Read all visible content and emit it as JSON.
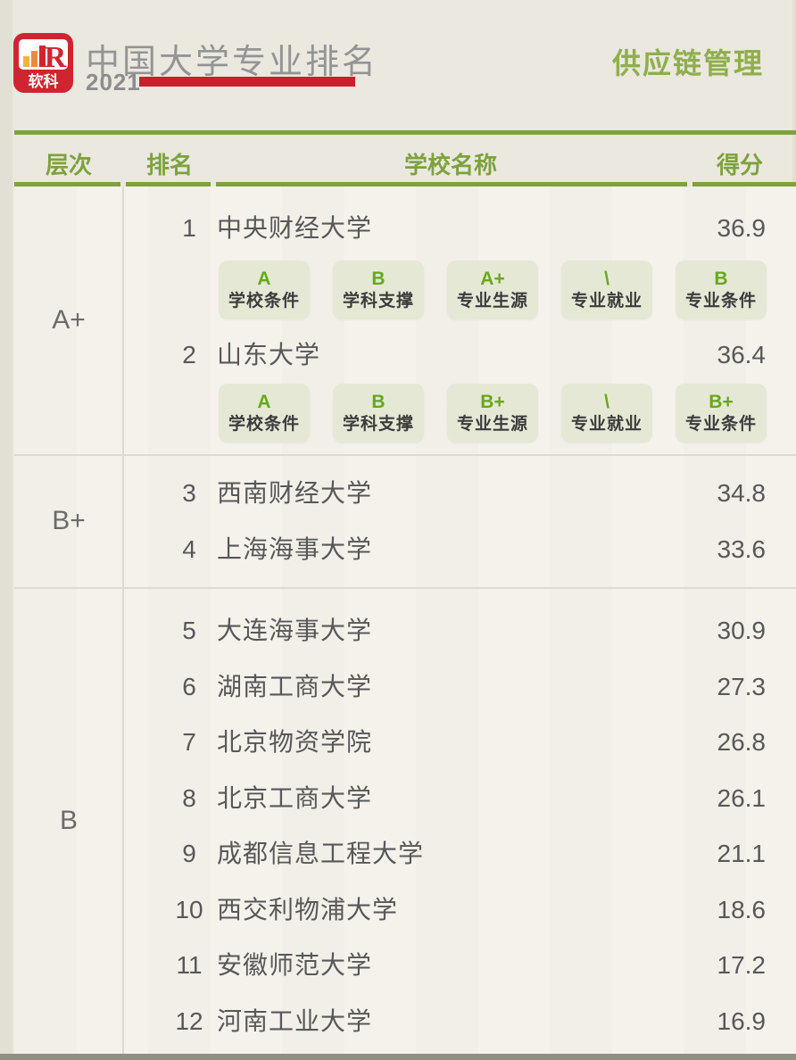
{
  "header": {
    "brand": "软科",
    "title": "中国大学专业排名",
    "year": "2021",
    "subject": "供应链管理"
  },
  "columns": {
    "tier": "层次",
    "rank": "排名",
    "school": "学校名称",
    "score": "得分"
  },
  "table": {
    "sections": [
      {
        "tier": "A+",
        "rows": [
          {
            "rank": "1",
            "school": "中央财经大学",
            "score": "36.9",
            "badges": [
              {
                "grade": "A",
                "label": "学校条件"
              },
              {
                "grade": "B",
                "label": "学科支撑"
              },
              {
                "grade": "A+",
                "label": "专业生源"
              },
              {
                "grade": "\\",
                "label": "专业就业"
              },
              {
                "grade": "B",
                "label": "专业条件"
              }
            ]
          },
          {
            "rank": "2",
            "school": "山东大学",
            "score": "36.4",
            "badges": [
              {
                "grade": "A",
                "label": "学校条件"
              },
              {
                "grade": "B",
                "label": "学科支撑"
              },
              {
                "grade": "B+",
                "label": "专业生源"
              },
              {
                "grade": "\\",
                "label": "专业就业"
              },
              {
                "grade": "B+",
                "label": "专业条件"
              }
            ]
          }
        ]
      },
      {
        "tier": "B+",
        "rows": [
          {
            "rank": "3",
            "school": "西南财经大学",
            "score": "34.8"
          },
          {
            "rank": "4",
            "school": "上海海事大学",
            "score": "33.6"
          }
        ]
      },
      {
        "tier": "B",
        "rows": [
          {
            "rank": "5",
            "school": "大连海事大学",
            "score": "30.9"
          },
          {
            "rank": "6",
            "school": "湖南工商大学",
            "score": "27.3"
          },
          {
            "rank": "7",
            "school": "北京物资学院",
            "score": "26.8"
          },
          {
            "rank": "8",
            "school": "北京工商大学",
            "score": "26.1"
          },
          {
            "rank": "9",
            "school": "成都信息工程大学",
            "score": "21.1"
          },
          {
            "rank": "10",
            "school": "西交利物浦大学",
            "score": "18.6"
          },
          {
            "rank": "11",
            "school": "安徽师范大学",
            "score": "17.2"
          },
          {
            "rank": "12",
            "school": "河南工业大学",
            "score": "16.9"
          }
        ]
      }
    ]
  },
  "chart_data": {
    "type": "table",
    "title": "中国大学专业排名 2021 — 供应链管理",
    "columns": [
      "层次",
      "排名",
      "学校名称",
      "得分"
    ],
    "rows": [
      [
        "A+",
        1,
        "中央财经大学",
        36.9
      ],
      [
        "A+",
        2,
        "山东大学",
        36.4
      ],
      [
        "B+",
        3,
        "西南财经大学",
        34.8
      ],
      [
        "B+",
        4,
        "上海海事大学",
        33.6
      ],
      [
        "B",
        5,
        "大连海事大学",
        30.9
      ],
      [
        "B",
        6,
        "湖南工商大学",
        27.3
      ],
      [
        "B",
        7,
        "北京物资学院",
        26.8
      ],
      [
        "B",
        8,
        "北京工商大学",
        26.1
      ],
      [
        "B",
        9,
        "成都信息工程大学",
        21.1
      ],
      [
        "B",
        10,
        "西交利物浦大学",
        18.6
      ],
      [
        "B",
        11,
        "安徽师范大学",
        17.2
      ],
      [
        "B",
        12,
        "河南工业大学",
        16.9
      ]
    ]
  },
  "colors": {
    "accent_green": "#7da23d",
    "subject_green": "#8fae4d",
    "grade_green": "#67a81c",
    "badge_bg": "#e4e8d5",
    "brand_red": "#c9202d",
    "title_gray": "#949494",
    "text_dark": "#585858",
    "page_bg": "#eae8df",
    "body_bg": "#f4f2eb"
  }
}
